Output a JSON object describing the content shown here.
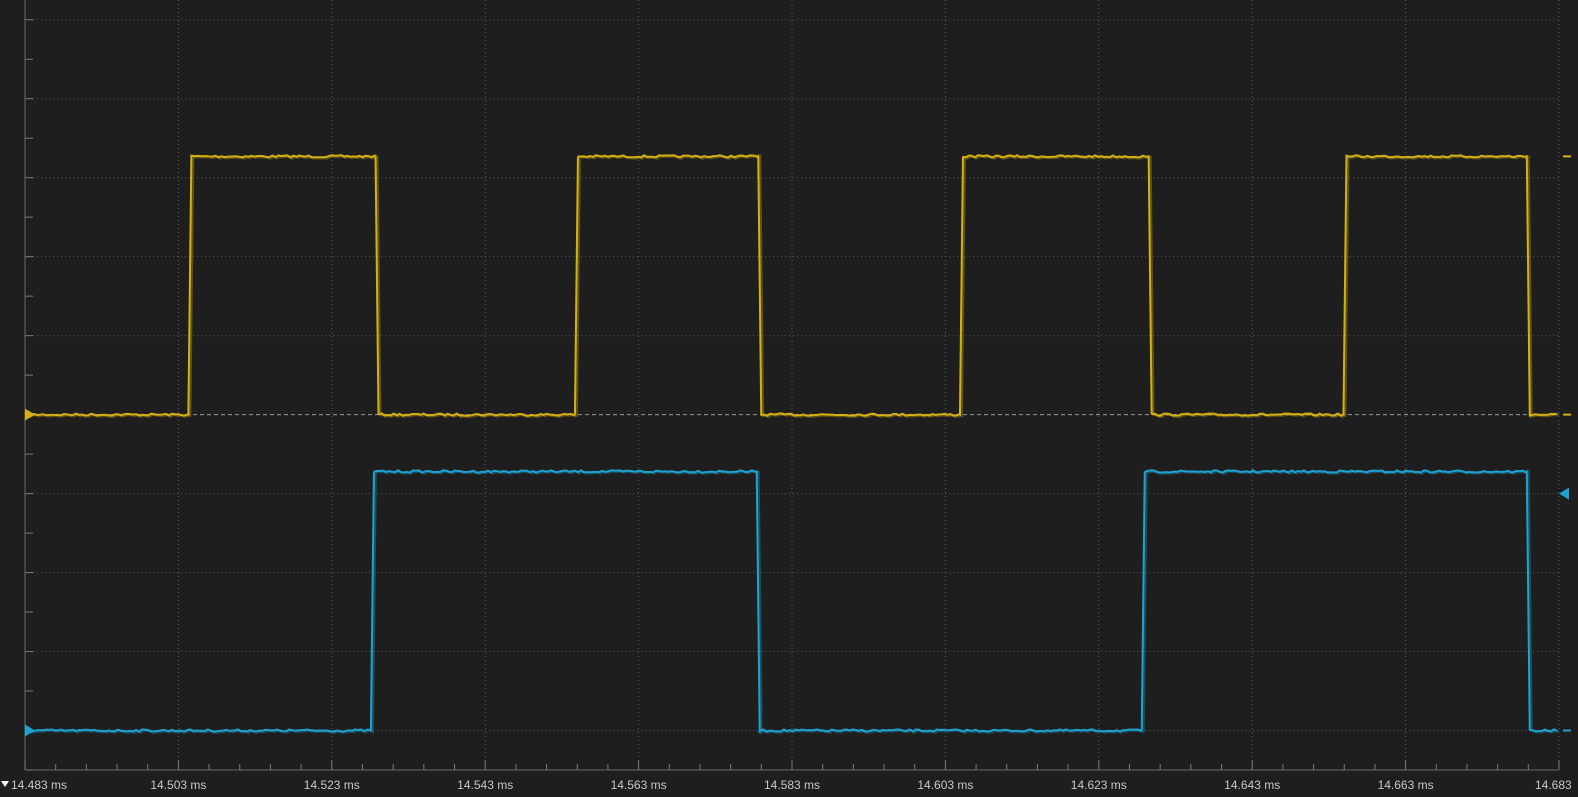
{
  "chart_data": {
    "type": "line",
    "title": "",
    "xlabel": "",
    "ylabel": "",
    "grid": true,
    "x_tick_labels": [
      "14.483 ms",
      "14.503 ms",
      "14.523 ms",
      "14.543 ms",
      "14.563 ms",
      "14.583 ms",
      "14.603 ms",
      "14.623 ms",
      "14.643 ms",
      "14.663 ms",
      "14.683"
    ],
    "xlim": [
      14.483,
      14.683
    ],
    "ylim": [
      -4.5,
      5.25
    ],
    "series": [
      {
        "color": "#d4b012",
        "low": 0.0,
        "high": 3.27,
        "start_level": "low",
        "edges": [
          14.5043,
          14.5287,
          14.5547,
          14.5786,
          14.6049,
          14.6295,
          14.6549,
          14.6788
        ]
      },
      {
        "color": "#1ea2d0",
        "low": -4.0,
        "high": -0.72,
        "start_level": "low",
        "edges": [
          14.5281,
          14.5784,
          14.6286,
          14.6788
        ]
      }
    ]
  },
  "colors": {
    "background": "#1e1e1e",
    "grid": "#5a5a5a",
    "reference_line": "#9a9a9a"
  }
}
